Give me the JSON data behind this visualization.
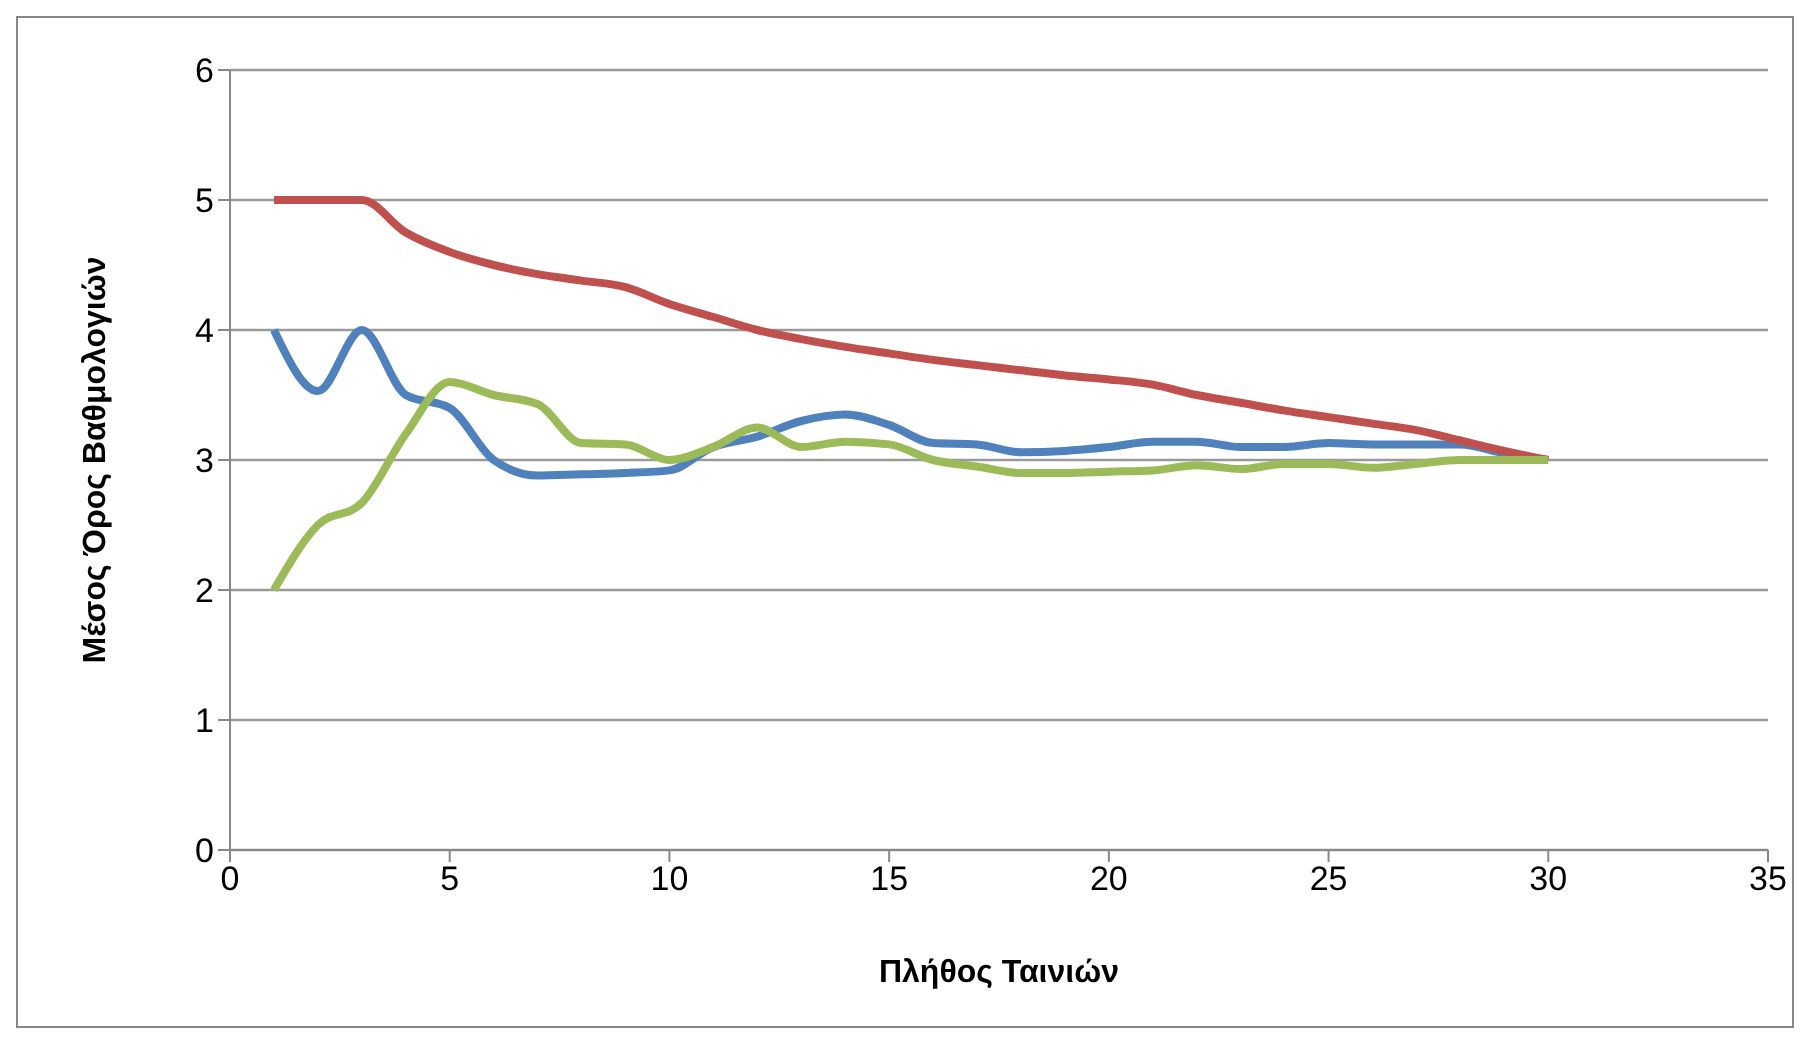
{
  "chart_data": {
    "type": "line",
    "xlabel": "Πλήθος Ταινιών",
    "ylabel": "Μέσος Όρος Βαθμολογιών",
    "x": [
      1,
      2,
      3,
      4,
      5,
      6,
      7,
      8,
      9,
      10,
      11,
      12,
      13,
      14,
      15,
      16,
      17,
      18,
      19,
      20,
      21,
      22,
      23,
      24,
      25,
      26,
      27,
      28,
      29,
      30
    ],
    "series": [
      {
        "color": "#4f81bd",
        "values": [
          4.0,
          3.53,
          4.0,
          3.5,
          3.4,
          3.0,
          2.88,
          2.89,
          2.9,
          2.92,
          3.1,
          3.18,
          3.3,
          3.35,
          3.27,
          3.13,
          3.12,
          3.06,
          3.07,
          3.1,
          3.14,
          3.14,
          3.1,
          3.1,
          3.13,
          3.12,
          3.12,
          3.12,
          3.05,
          3.0
        ]
      },
      {
        "color": "#c0504d",
        "values": [
          5.0,
          5.0,
          5.0,
          4.75,
          4.6,
          4.5,
          4.43,
          4.38,
          4.33,
          4.2,
          4.1,
          4.0,
          3.93,
          3.87,
          3.82,
          3.77,
          3.73,
          3.69,
          3.65,
          3.62,
          3.58,
          3.5,
          3.44,
          3.38,
          3.33,
          3.28,
          3.23,
          3.15,
          3.07,
          3.0
        ]
      },
      {
        "color": "#9bbb59",
        "values": [
          2.0,
          2.5,
          2.67,
          3.2,
          3.6,
          3.5,
          3.43,
          3.13,
          3.12,
          3.0,
          3.1,
          3.25,
          3.1,
          3.14,
          3.12,
          3.0,
          2.95,
          2.9,
          2.9,
          2.91,
          2.92,
          2.96,
          2.93,
          2.97,
          2.97,
          2.94,
          2.97,
          3.0,
          3.0,
          3.0
        ]
      }
    ],
    "xlim": [
      0,
      35
    ],
    "xticks": [
      0,
      5,
      10,
      15,
      20,
      25,
      30,
      35
    ],
    "ylim": [
      0,
      6
    ],
    "yticks": [
      0,
      1,
      2,
      3,
      4,
      5,
      6
    ],
    "grid": "y",
    "legend": false,
    "marker": "none",
    "line_style": "solid"
  }
}
